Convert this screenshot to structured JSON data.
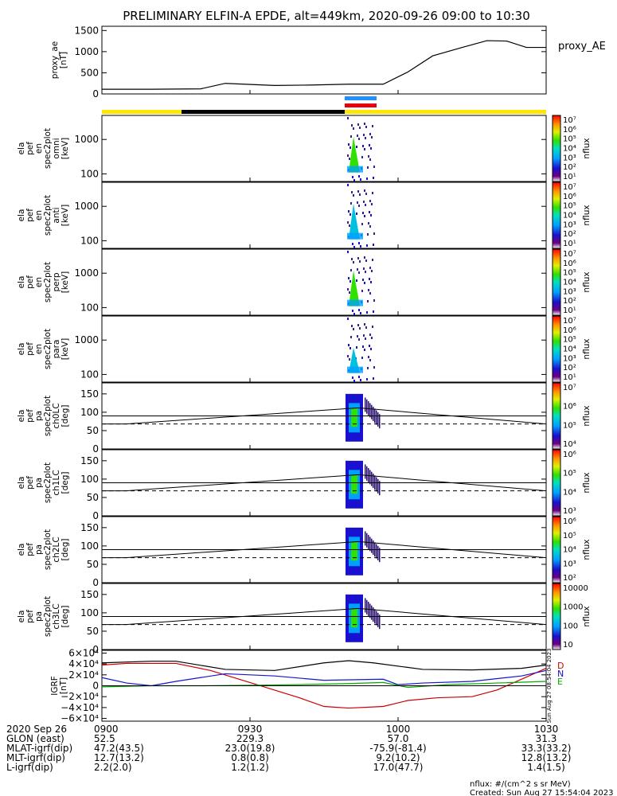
{
  "title": "PRELIMINARY ELFIN-A EPDE, alt=449km, 2020-09-26 09:00 to 10:30",
  "chart_data": [
    {
      "type": "line",
      "panel": "proxy_ae",
      "ylabel": [
        "proxy_ae",
        "[nT]"
      ],
      "ylim": [
        0,
        1600
      ],
      "yticks": [
        "1500",
        "1000",
        "500",
        "0"
      ],
      "ytick_values": [
        1500,
        1000,
        500,
        0
      ],
      "legend": "proxy_AE",
      "series": [
        {
          "name": "proxy_AE",
          "x": [
            0,
            10,
            20,
            25,
            35,
            42,
            50,
            57,
            62,
            67,
            73,
            78,
            82,
            86,
            90
          ],
          "y": [
            110,
            110,
            120,
            250,
            200,
            210,
            230,
            230,
            520,
            900,
            1100,
            1260,
            1250,
            1100,
            1100
          ]
        }
      ]
    },
    {
      "type": "heatmap",
      "panel": "omni",
      "ylabel": [
        "ela",
        "pef",
        "en",
        "spec2plot",
        "omni",
        "[keV]"
      ],
      "yscale": "log",
      "yticks": [
        "1000",
        "100"
      ],
      "ytick_values": [
        1000,
        100
      ],
      "colorbar": {
        "label": "nflux",
        "ticks": [
          "10⁷",
          "10⁶",
          "10⁵",
          "10⁴",
          "10³",
          "10²",
          "10¹"
        ]
      }
    },
    {
      "type": "heatmap",
      "panel": "anti",
      "ylabel": [
        "ela",
        "pef",
        "en",
        "spec2plot",
        "anti",
        "[keV]"
      ],
      "yscale": "log",
      "yticks": [
        "1000",
        "100"
      ],
      "ytick_values": [
        1000,
        100
      ],
      "colorbar": {
        "label": "nflux",
        "ticks": [
          "10⁷",
          "10⁶",
          "10⁵",
          "10⁴",
          "10³",
          "10²",
          "10¹"
        ]
      }
    },
    {
      "type": "heatmap",
      "panel": "perp",
      "ylabel": [
        "ela",
        "pef",
        "en",
        "spec2plot",
        "perp",
        "[keV]"
      ],
      "yscale": "log",
      "yticks": [
        "1000",
        "100"
      ],
      "ytick_values": [
        1000,
        100
      ],
      "colorbar": {
        "label": "nflux",
        "ticks": [
          "10⁷",
          "10⁶",
          "10⁵",
          "10⁴",
          "10³",
          "10²",
          "10¹"
        ]
      }
    },
    {
      "type": "heatmap",
      "panel": "para",
      "ylabel": [
        "ela",
        "pef",
        "en",
        "spec2plot",
        "para",
        "[keV]"
      ],
      "yscale": "log",
      "yticks": [
        "1000",
        "100"
      ],
      "ytick_values": [
        1000,
        100
      ],
      "colorbar": {
        "label": "nflux",
        "ticks": [
          "10⁷",
          "10⁶",
          "10⁵",
          "10⁴",
          "10³",
          "10²",
          "10¹"
        ]
      }
    },
    {
      "type": "heatmap",
      "panel": "ch0LC",
      "ylabel": [
        "ela",
        "pef",
        "pa",
        "spec2plot",
        "ch0LC",
        "[deg]"
      ],
      "ylim": [
        0,
        180
      ],
      "yticks": [
        "150",
        "100",
        "50",
        "0"
      ],
      "ytick_values": [
        150,
        100,
        50,
        0
      ],
      "colorbar": {
        "label": "nflux",
        "ticks": [
          "10⁷",
          "10⁶",
          "10⁵",
          "10⁴"
        ]
      }
    },
    {
      "type": "heatmap",
      "panel": "ch1LC",
      "ylabel": [
        "ela",
        "pef",
        "pa",
        "spec2plot",
        "ch1LC",
        "[deg]"
      ],
      "ylim": [
        0,
        180
      ],
      "yticks": [
        "150",
        "100",
        "50",
        "0"
      ],
      "ytick_values": [
        150,
        100,
        50,
        0
      ],
      "colorbar": {
        "label": "nflux",
        "ticks": [
          "10⁶",
          "10⁵",
          "10⁴",
          "10³"
        ]
      }
    },
    {
      "type": "heatmap",
      "panel": "ch2LC",
      "ylabel": [
        "ela",
        "pef",
        "pa",
        "spec2plot",
        "ch2LC",
        "[deg]"
      ],
      "ylim": [
        0,
        180
      ],
      "yticks": [
        "150",
        "100",
        "50",
        "0"
      ],
      "ytick_values": [
        150,
        100,
        50,
        0
      ],
      "colorbar": {
        "label": "nflux",
        "ticks": [
          "10⁶",
          "10⁵",
          "10⁴",
          "10³",
          "10²"
        ]
      }
    },
    {
      "type": "heatmap",
      "panel": "ch3LC",
      "ylabel": [
        "ela",
        "pef",
        "pa",
        "spec2plot",
        "ch3LC",
        "[deg]"
      ],
      "ylim": [
        0,
        180
      ],
      "yticks": [
        "150",
        "100",
        "50",
        "0"
      ],
      "ytick_values": [
        150,
        100,
        50,
        0
      ],
      "colorbar": {
        "label": "nflux",
        "ticks": [
          "10000",
          "1000",
          "100",
          "10"
        ]
      }
    },
    {
      "type": "line",
      "panel": "IGRF",
      "ylabel": [
        "IGRF",
        "[nT]"
      ],
      "ylim": [
        -65000,
        65000
      ],
      "yticks": [
        "6×10⁴",
        "4×10⁴",
        "2×10⁴",
        "0",
        "−2×10⁴",
        "−4×10⁴",
        "−6×10⁴"
      ],
      "ytick_values": [
        60000,
        40000,
        20000,
        0,
        -20000,
        -40000,
        -60000
      ],
      "legend": [
        "D",
        "N",
        "E"
      ],
      "series": [
        {
          "name": "D",
          "x": [
            0,
            5,
            15,
            22,
            30,
            40,
            45,
            50,
            57,
            62,
            68,
            75,
            80,
            85,
            90
          ],
          "y": [
            38000,
            41000,
            41000,
            28000,
            6000,
            -22000,
            -38000,
            -41000,
            -38000,
            -27000,
            -22000,
            -20000,
            -8000,
            12000,
            32000
          ]
        },
        {
          "name": "N",
          "x": [
            0,
            5,
            10,
            15,
            25,
            35,
            45,
            57,
            60,
            65,
            75,
            85,
            90
          ],
          "y": [
            15000,
            5000,
            0,
            8000,
            22000,
            18000,
            10000,
            12000,
            2000,
            5000,
            8000,
            18000,
            28000
          ]
        },
        {
          "name": "E",
          "x": [
            0,
            10,
            20,
            30,
            40,
            50,
            57,
            62,
            70,
            80,
            90
          ],
          "y": [
            -2000,
            0,
            0,
            1000,
            2000,
            4000,
            6000,
            -3000,
            2000,
            5000,
            8000
          ]
        },
        {
          "name": "total",
          "x": [
            0,
            10,
            15,
            25,
            35,
            45,
            50,
            55,
            65,
            75,
            85,
            90
          ],
          "y": [
            42000,
            45000,
            45000,
            30000,
            28000,
            42000,
            46000,
            42000,
            30000,
            29000,
            32000,
            38000
          ]
        }
      ]
    }
  ],
  "xaxis": {
    "tick_labels": [
      "0900",
      "0930",
      "1000",
      "1030"
    ],
    "tick_minutes": [
      0,
      30,
      60,
      90
    ]
  },
  "bottom_table": [
    {
      "label": "2020 Sep 26",
      "values": [
        "0900",
        "0930",
        "1000",
        "1030"
      ]
    },
    {
      "label": "GLON (east)",
      "values": [
        "52.5",
        "229.3",
        "57.0",
        "31.3"
      ]
    },
    {
      "label": "MLAT-igrf(dip)",
      "values": [
        "47.2(43.5)",
        "23.0(19.8)",
        "-75.9(-81.4)",
        "33.3(33.2)"
      ]
    },
    {
      "label": "MLT-igrf(dip)",
      "values": [
        "12.7(13.2)",
        "0.8(0.8)",
        "9.2(10.2)",
        "12.8(13.2)"
      ]
    },
    {
      "label": "L-igrf(dip)",
      "values": [
        "2.2(2.0)",
        "1.2(1.2)",
        "17.0(47.7)",
        "1.4(1.5)"
      ]
    }
  ],
  "footer": {
    "units": "nflux: #/(cm^2 s sr MeV)",
    "created": "Created: Sun Aug 27 15:54:04 2023"
  },
  "timestamp_vertical": "Sun Aug 27 08:54:04 2023",
  "colors": {
    "yellow": "#ffe600",
    "black": "#000000",
    "blue": "#1e90ff",
    "red": "#e8000b",
    "igrf_D": "#cc0000",
    "igrf_N": "#1515cc",
    "igrf_E": "#00aa00"
  }
}
